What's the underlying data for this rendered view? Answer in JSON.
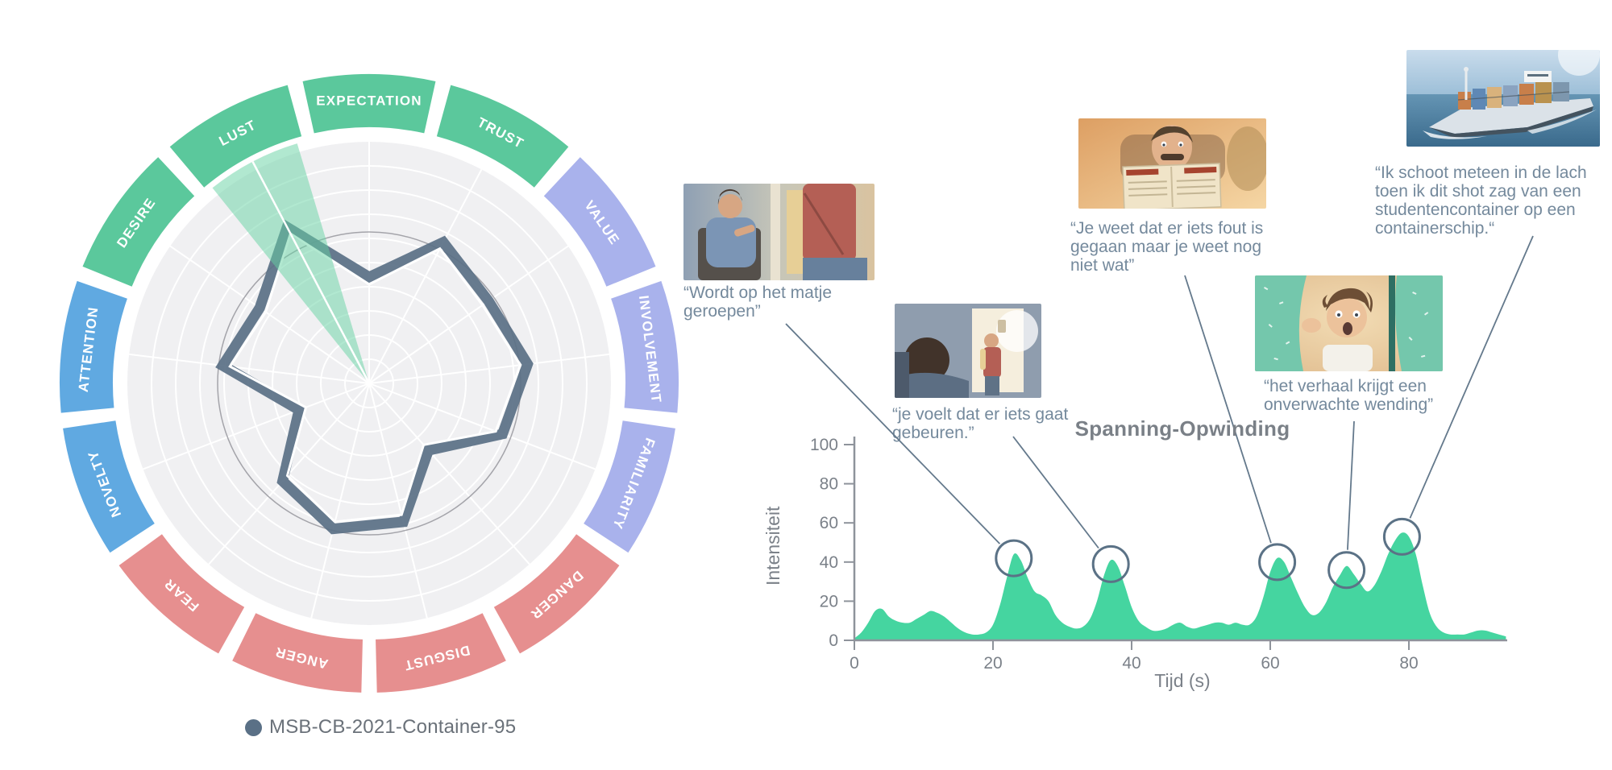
{
  "chart_data": [
    {
      "type": "radar",
      "legend": "MSB-CB-2021-Container-95",
      "series_color": "#5a7086",
      "grid_color": "#f0f0f2",
      "highlight_sector": "LUST",
      "highlight_color": "#64d2a1",
      "max": 100,
      "axes": [
        {
          "label": "EXPECTATION",
          "value": 44,
          "color": "#5bc89c"
        },
        {
          "label": "TRUST",
          "value": 66,
          "color": "#5bc89c"
        },
        {
          "label": "VALUE",
          "value": 60,
          "color": "#a9b2ec"
        },
        {
          "label": "INVOLVEMENT",
          "value": 66,
          "color": "#a9b2ec"
        },
        {
          "label": "FAMILIARITY",
          "value": 59,
          "color": "#a9b2ec"
        },
        {
          "label": "DANGER",
          "value": 37,
          "color": "#e68f8f"
        },
        {
          "label": "DISGUST",
          "value": 59,
          "color": "#e68f8f"
        },
        {
          "label": "ANGER",
          "value": 62,
          "color": "#e68f8f"
        },
        {
          "label": "FEAR",
          "value": 54,
          "color": "#e68f8f"
        },
        {
          "label": "NOVELTY",
          "value": 31,
          "color": "#60a9e1"
        },
        {
          "label": "ATTENTION",
          "value": 61,
          "color": "#60a9e1"
        },
        {
          "label": "DESIRE",
          "value": 55,
          "color": "#5bc89c"
        },
        {
          "label": "LUST",
          "value": 73,
          "color": "#5bc89c"
        }
      ]
    },
    {
      "type": "area",
      "title": "Spanning-Opwinding",
      "xlabel": "Tijd (s)",
      "ylabel": "Intensiteit",
      "x_ticks": [
        0,
        20,
        40,
        60,
        80
      ],
      "y_ticks": [
        0,
        20,
        40,
        60,
        80,
        100
      ],
      "xlim": [
        0,
        94
      ],
      "ylim": [
        0,
        100
      ],
      "grid": false,
      "area_color": "#45d5a0",
      "accent_color": "#5b7286",
      "line_color": "#64798c",
      "axis_color": "#8e939b",
      "tick_text_color": "#7b8189",
      "points": [
        [
          0,
          1
        ],
        [
          1,
          4
        ],
        [
          2,
          9
        ],
        [
          3,
          15
        ],
        [
          4,
          16
        ],
        [
          5,
          12
        ],
        [
          6,
          10
        ],
        [
          7,
          9
        ],
        [
          8,
          9
        ],
        [
          9,
          11
        ],
        [
          10,
          13
        ],
        [
          11,
          15
        ],
        [
          12,
          14
        ],
        [
          13,
          12
        ],
        [
          14,
          9
        ],
        [
          15,
          6
        ],
        [
          16,
          4
        ],
        [
          17,
          3
        ],
        [
          18,
          3
        ],
        [
          19,
          4
        ],
        [
          20,
          8
        ],
        [
          21,
          18
        ],
        [
          22,
          32
        ],
        [
          23,
          44
        ],
        [
          24,
          41
        ],
        [
          25,
          32
        ],
        [
          26,
          25
        ],
        [
          27,
          23
        ],
        [
          28,
          20
        ],
        [
          29,
          13
        ],
        [
          30,
          9
        ],
        [
          31,
          7
        ],
        [
          32,
          6
        ],
        [
          33,
          7
        ],
        [
          34,
          11
        ],
        [
          35,
          20
        ],
        [
          36,
          33
        ],
        [
          37,
          41
        ],
        [
          38,
          38
        ],
        [
          39,
          28
        ],
        [
          40,
          17
        ],
        [
          41,
          10
        ],
        [
          42,
          7
        ],
        [
          43,
          5
        ],
        [
          44,
          5
        ],
        [
          45,
          6
        ],
        [
          46,
          8
        ],
        [
          47,
          9
        ],
        [
          48,
          7
        ],
        [
          49,
          6
        ],
        [
          50,
          7
        ],
        [
          51,
          8
        ],
        [
          52,
          9
        ],
        [
          53,
          9
        ],
        [
          54,
          8
        ],
        [
          55,
          9
        ],
        [
          56,
          8
        ],
        [
          57,
          8
        ],
        [
          58,
          12
        ],
        [
          59,
          22
        ],
        [
          60,
          35
        ],
        [
          61,
          42
        ],
        [
          62,
          40
        ],
        [
          63,
          32
        ],
        [
          64,
          24
        ],
        [
          65,
          17
        ],
        [
          66,
          13
        ],
        [
          67,
          14
        ],
        [
          68,
          19
        ],
        [
          69,
          27
        ],
        [
          70,
          33
        ],
        [
          71,
          38
        ],
        [
          72,
          34
        ],
        [
          73,
          29
        ],
        [
          74,
          25
        ],
        [
          75,
          28
        ],
        [
          76,
          35
        ],
        [
          77,
          44
        ],
        [
          78,
          51
        ],
        [
          79,
          55
        ],
        [
          80,
          53
        ],
        [
          81,
          44
        ],
        [
          82,
          28
        ],
        [
          83,
          14
        ],
        [
          84,
          7
        ],
        [
          85,
          4
        ],
        [
          86,
          3
        ],
        [
          87,
          3
        ],
        [
          88,
          3
        ],
        [
          89,
          4
        ],
        [
          90,
          5
        ],
        [
          91,
          5
        ],
        [
          92,
          4
        ],
        [
          93,
          3
        ],
        [
          94,
          2
        ]
      ],
      "annotations": [
        {
          "id": 1,
          "quote": "“Wordt op het matje geroepen”",
          "peak_t": 23,
          "peak_v": 44
        },
        {
          "id": 2,
          "quote": "“je voelt dat er iets gaat gebeuren.”",
          "peak_t": 37,
          "peak_v": 41
        },
        {
          "id": 3,
          "quote": "“Je weet dat er iets fout is gegaan maar je weet nog niet wat”",
          "peak_t": 61,
          "peak_v": 42
        },
        {
          "id": 4,
          "quote": "“het verhaal krijgt een onverwachte wending”",
          "peak_t": 71,
          "peak_v": 38
        },
        {
          "id": 5,
          "quote": "“Ik schoot meteen in de lach toen ik dit shot zag van een studentencontainer op een containerschip.“",
          "peak_t": 79,
          "peak_v": 55
        }
      ]
    }
  ]
}
